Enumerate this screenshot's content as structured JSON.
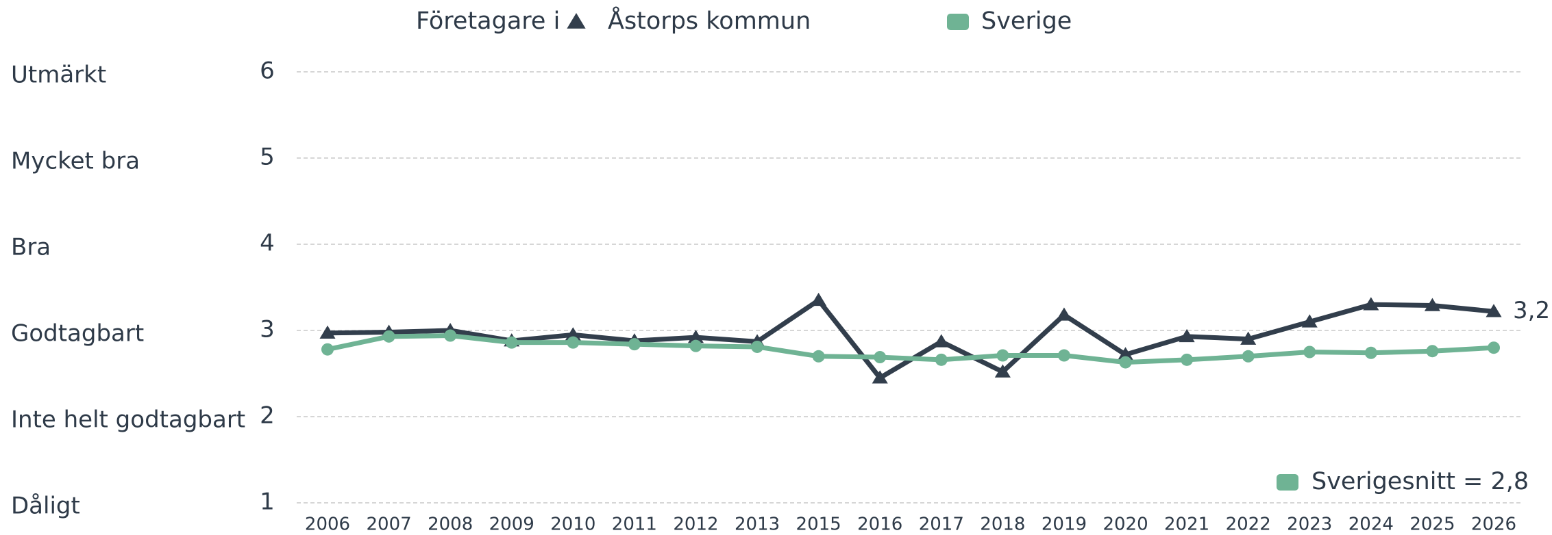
{
  "chart_data": {
    "type": "line",
    "legend_prefix": "Företagare i",
    "categories": [
      "2006",
      "2007",
      "2008",
      "2009",
      "2010",
      "2011",
      "2012",
      "2013",
      "2015",
      "2016",
      "2017",
      "2018",
      "2019",
      "2020",
      "2021",
      "2022",
      "2023",
      "2024",
      "2025",
      "2026"
    ],
    "series": [
      {
        "name": "Åstorps kommun",
        "color": "#323e4c",
        "marker": "triangle",
        "values": [
          2.97,
          2.98,
          3.0,
          2.88,
          2.95,
          2.88,
          2.92,
          2.87,
          3.35,
          2.45,
          2.87,
          2.52,
          3.18,
          2.72,
          2.93,
          2.9,
          3.1,
          3.3,
          3.29,
          3.22
        ],
        "value_labels": [
          null,
          null,
          null,
          null,
          null,
          null,
          null,
          null,
          null,
          null,
          null,
          null,
          null,
          null,
          null,
          null,
          null,
          null,
          null,
          "3,2"
        ]
      },
      {
        "name": "Sverige",
        "color": "#6fb394",
        "marker": "circle",
        "values": [
          2.78,
          2.93,
          2.94,
          2.86,
          2.86,
          2.84,
          2.82,
          2.81,
          2.7,
          2.69,
          2.66,
          2.71,
          2.71,
          2.63,
          2.66,
          2.7,
          2.75,
          2.74,
          2.76,
          2.8
        ]
      }
    ],
    "ylim": [
      1,
      6
    ],
    "yticks": [
      1,
      2,
      3,
      4,
      5,
      6
    ],
    "y_level_labels": [
      "Dåligt",
      "Inte helt godtagbart",
      "Godtagbart",
      "Bra",
      "Mycket bra",
      "Utmärkt"
    ],
    "grid": true,
    "annotation": "Sverigesnitt = 2,8"
  }
}
